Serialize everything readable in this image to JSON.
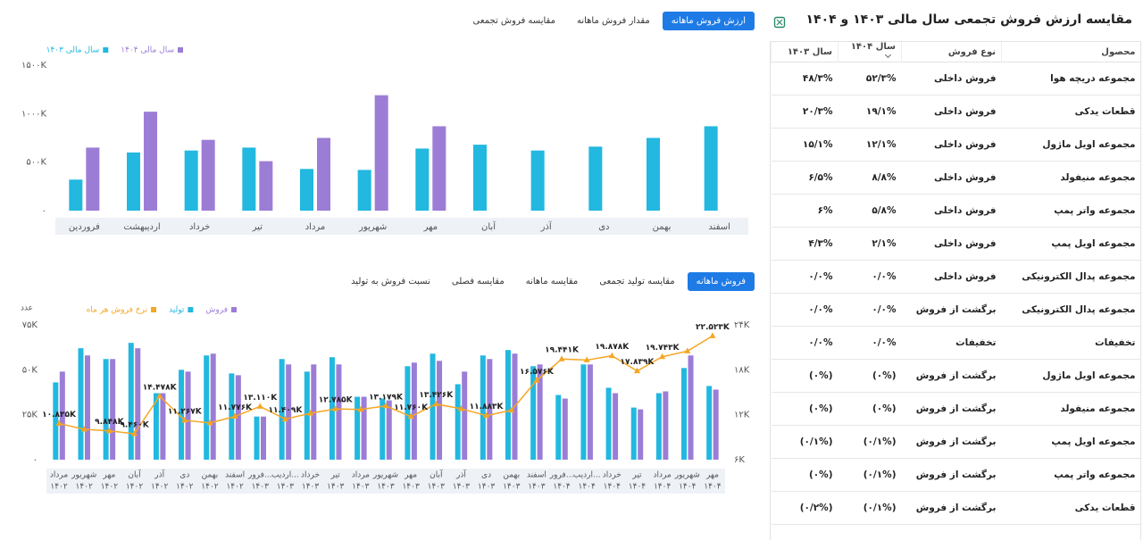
{
  "header": {
    "title": "مقایسه ارزش فروش تجمعی سال مالی ۱۴۰۳ و ۱۴۰۴"
  },
  "tabs": {
    "top": {
      "items": [
        "ارزش فروش ماهانه",
        "مقدار فروش ماهانه",
        "مقایسه فروش تجمعی"
      ],
      "active": 0
    },
    "bottom": {
      "items": [
        "فروش ماهانه",
        "مقایسه تولید تجمعی",
        "مقایسه ماهانه",
        "مقایسه فصلی",
        "نسبت فروش به تولید"
      ],
      "active": 0
    }
  },
  "chart_data": [
    {
      "type": "bar",
      "categories": [
        "فروردین",
        "اردیبهشت",
        "خرداد",
        "تیر",
        "مرداد",
        "شهریور",
        "مهر",
        "آبان",
        "آذر",
        "دی",
        "بهمن",
        "اسفند"
      ],
      "series": [
        {
          "name": "سال مالی ۱۴۰۴",
          "color": "#9c7dd6",
          "values": [
            650000,
            1020000,
            730000,
            510000,
            750000,
            1190000,
            870000,
            null,
            null,
            null,
            null,
            null
          ]
        },
        {
          "name": "سال مالی ۱۴۰۳",
          "color": "#22b8e0",
          "values": [
            320000,
            600000,
            620000,
            650000,
            430000,
            420000,
            640000,
            680000,
            620000,
            660000,
            750000,
            870000
          ]
        }
      ],
      "ylim": [
        0,
        1500000
      ],
      "yticks": [
        {
          "value": 0,
          "label": "۰"
        },
        {
          "value": 500000,
          "label": "۵۰۰K"
        },
        {
          "value": 1000000,
          "label": "۱۰۰۰K"
        },
        {
          "value": 1500000,
          "label": "۱۵۰۰K"
        }
      ],
      "grid": false
    },
    {
      "type": "combo",
      "ylabel": "عدد",
      "categories": [
        "مرداد",
        "شهریور",
        "مهر",
        "آبان",
        "آذر",
        "دی",
        "بهمن",
        "اسفند",
        "فرور...",
        "اردیب...",
        "خرداد",
        "تیر",
        "مرداد",
        "شهریور",
        "مهر",
        "آبان",
        "آذر",
        "دی",
        "بهمن",
        "اسفند",
        "فرور...",
        "اردیب...",
        "خرداد",
        "تیر",
        "مرداد",
        "شهریور",
        "مهر"
      ],
      "category_years": [
        "۱۴۰۲",
        "۱۴۰۲",
        "۱۴۰۲",
        "۱۴۰۲",
        "۱۴۰۲",
        "۱۴۰۲",
        "۱۴۰۲",
        "۱۴۰۲",
        "۱۴۰۳",
        "۱۴۰۳",
        "۱۴۰۳",
        "۱۴۰۳",
        "۱۴۰۳",
        "۱۴۰۳",
        "۱۴۰۳",
        "۱۴۰۳",
        "۱۴۰۳",
        "۱۴۰۳",
        "۱۴۰۳",
        "۱۴۰۳",
        "۱۴۰۴",
        "۱۴۰۴",
        "۱۴۰۴",
        "۱۴۰۴",
        "۱۴۰۴",
        "۱۴۰۴",
        "۱۴۰۴"
      ],
      "series": [
        {
          "name": "فروش",
          "type": "bar",
          "color": "#9c7dd6",
          "values": [
            49000,
            58000,
            56000,
            62000,
            37000,
            49000,
            59000,
            47000,
            24000,
            53000,
            53000,
            53000,
            35000,
            33000,
            54000,
            55000,
            49000,
            56000,
            59000,
            53000,
            34000,
            53000,
            37000,
            28000,
            38000,
            58000,
            39000
          ]
        },
        {
          "name": "تولید",
          "type": "bar",
          "color": "#22b8e0",
          "values": [
            43000,
            62000,
            56000,
            65000,
            37000,
            50000,
            58000,
            48000,
            24000,
            56000,
            49000,
            57000,
            35000,
            34000,
            52000,
            59000,
            42000,
            58000,
            61000,
            52000,
            36000,
            53000,
            40000,
            29000,
            37000,
            51000,
            41000
          ]
        },
        {
          "name": "نرخ فروش هر ماه",
          "type": "line",
          "axis": "y2",
          "color": "#f5a623",
          "values": [
            10835,
            10050,
            9848,
            9460,
            14478,
            11267,
            10900,
            11776,
            13110,
            11409,
            12200,
            12785,
            12700,
            13179,
            11760,
            13426,
            12800,
            11883,
            12600,
            16576,
            19441,
            19300,
            19878,
            17839,
            19743,
            20500,
            22523
          ],
          "value_labels": [
            "۱۰.۸۳۵K",
            null,
            "۹.۸۴۸K",
            "۹.۴۶۰K",
            "۱۴.۴۷۸K",
            "۱۱.۲۶۷K",
            null,
            "۱۱.۷۷۶K",
            "۱۳.۱۱۰K",
            "۱۱.۴۰۹K",
            null,
            "۱۲.۷۸۵K",
            null,
            "۱۳.۱۷۹K",
            "۱۱.۷۶۰K",
            "۱۳.۴۲۶K",
            null,
            "۱۱.۸۸۳K",
            null,
            "۱۶.۵۷۶K",
            "۱۹.۴۴۱K",
            null,
            "۱۹.۸۷۸K",
            "۱۷.۸۳۹K",
            "۱۹.۷۴۳K",
            null,
            "۲۲.۵۲۳K"
          ]
        }
      ],
      "ylim": [
        0,
        75000
      ],
      "yticks": [
        {
          "value": 0,
          "label": "۰"
        },
        {
          "value": 25000,
          "label": "۲۵K"
        },
        {
          "value": 50000,
          "label": "۵۰K"
        },
        {
          "value": 75000,
          "label": "۷۵K"
        }
      ],
      "y2lim": [
        6000,
        24000
      ],
      "y2ticks": [
        {
          "value": 6000,
          "label": "۶K"
        },
        {
          "value": 12000,
          "label": "۱۲K"
        },
        {
          "value": 18000,
          "label": "۱۸K"
        },
        {
          "value": 24000,
          "label": "۲۴K"
        }
      ],
      "grid": false
    }
  ],
  "table": {
    "columns": [
      "محصول",
      "نوع فروش",
      "سال ۱۴۰۴",
      "سال ۱۴۰۳"
    ],
    "rows": [
      [
        "مجموعه دریچه هوا",
        "فروش داخلی",
        "۵۲/۳%",
        "۴۸/۳%"
      ],
      [
        "قطعات یدکی",
        "فروش داخلی",
        "۱۹/۱%",
        "۲۰/۳%"
      ],
      [
        "مجموعه اویل ماژول",
        "فروش داخلی",
        "۱۲/۱%",
        "۱۵/۱%"
      ],
      [
        "مجموعه منیفولد",
        "فروش داخلی",
        "۸/۸%",
        "۶/۵%"
      ],
      [
        "مجموعه واتر پمپ",
        "فروش داخلی",
        "۵/۸%",
        "۶%"
      ],
      [
        "مجموعه اویل پمپ",
        "فروش داخلی",
        "۲/۱%",
        "۴/۳%"
      ],
      [
        "مجموعه پدال الکترونیکی",
        "فروش داخلی",
        "۰/۰%",
        "۰/۰%"
      ],
      [
        "مجموعه پدال الکترونیکی",
        "برگشت از فروش",
        "۰/۰%",
        "۰/۰%"
      ],
      [
        "تخفیفات",
        "تخفیفات",
        "۰/۰%",
        "۰/۰%"
      ],
      [
        "مجموعه اویل ماژول",
        "برگشت از فروش",
        "(۰%)",
        "(۰%)"
      ],
      [
        "مجموعه منیفولد",
        "برگشت از فروش",
        "(۰%)",
        "(۰%)"
      ],
      [
        "مجموعه اویل پمپ",
        "برگشت از فروش",
        "(۰/۱%)",
        "(۰/۱%)"
      ],
      [
        "مجموعه واتر پمپ",
        "برگشت از فروش",
        "(۰/۱%)",
        "(۰%)"
      ],
      [
        "قطعات یدکی",
        "برگشت از فروش",
        "(۰/۱%)",
        "(۰/۲%)"
      ]
    ]
  }
}
